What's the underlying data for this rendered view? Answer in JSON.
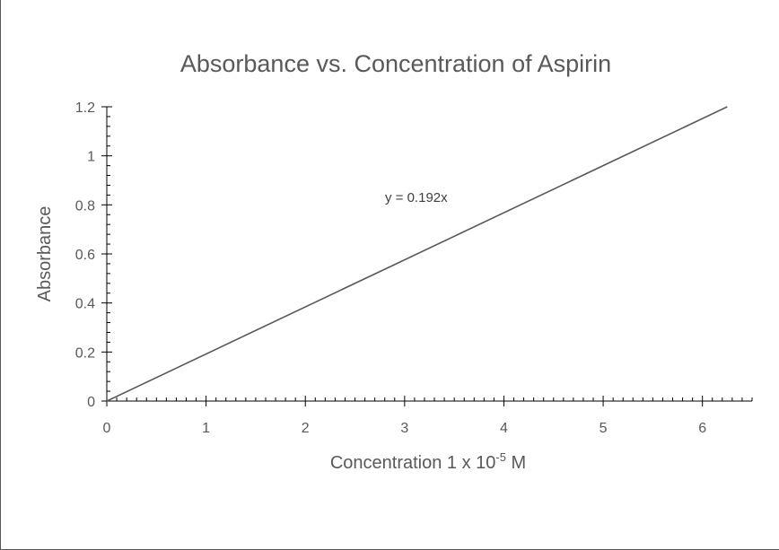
{
  "chart_data": {
    "type": "line",
    "title": "Absorbance vs. Concentration of Aspirin",
    "xlabel": {
      "base": "Concentration 1 x 10",
      "superscript": "-5",
      "suffix": " M"
    },
    "ylabel": "Absorbance",
    "xlim": [
      0,
      6.5
    ],
    "ylim": [
      0,
      1.2
    ],
    "x_ticks": [
      "0",
      "1",
      "2",
      "3",
      "4",
      "5",
      "6"
    ],
    "y_ticks": [
      "0",
      "0.2",
      "0.4",
      "0.6",
      "0.8",
      "1",
      "1.2"
    ],
    "series": [
      {
        "x": [
          0.0,
          6.25
        ],
        "y": [
          0.0,
          1.2
        ]
      }
    ],
    "trendline_equation": "y = 0.192x",
    "grid": false,
    "colors": {
      "line": "#595959",
      "axis": "#000000",
      "text": "#595959"
    }
  }
}
